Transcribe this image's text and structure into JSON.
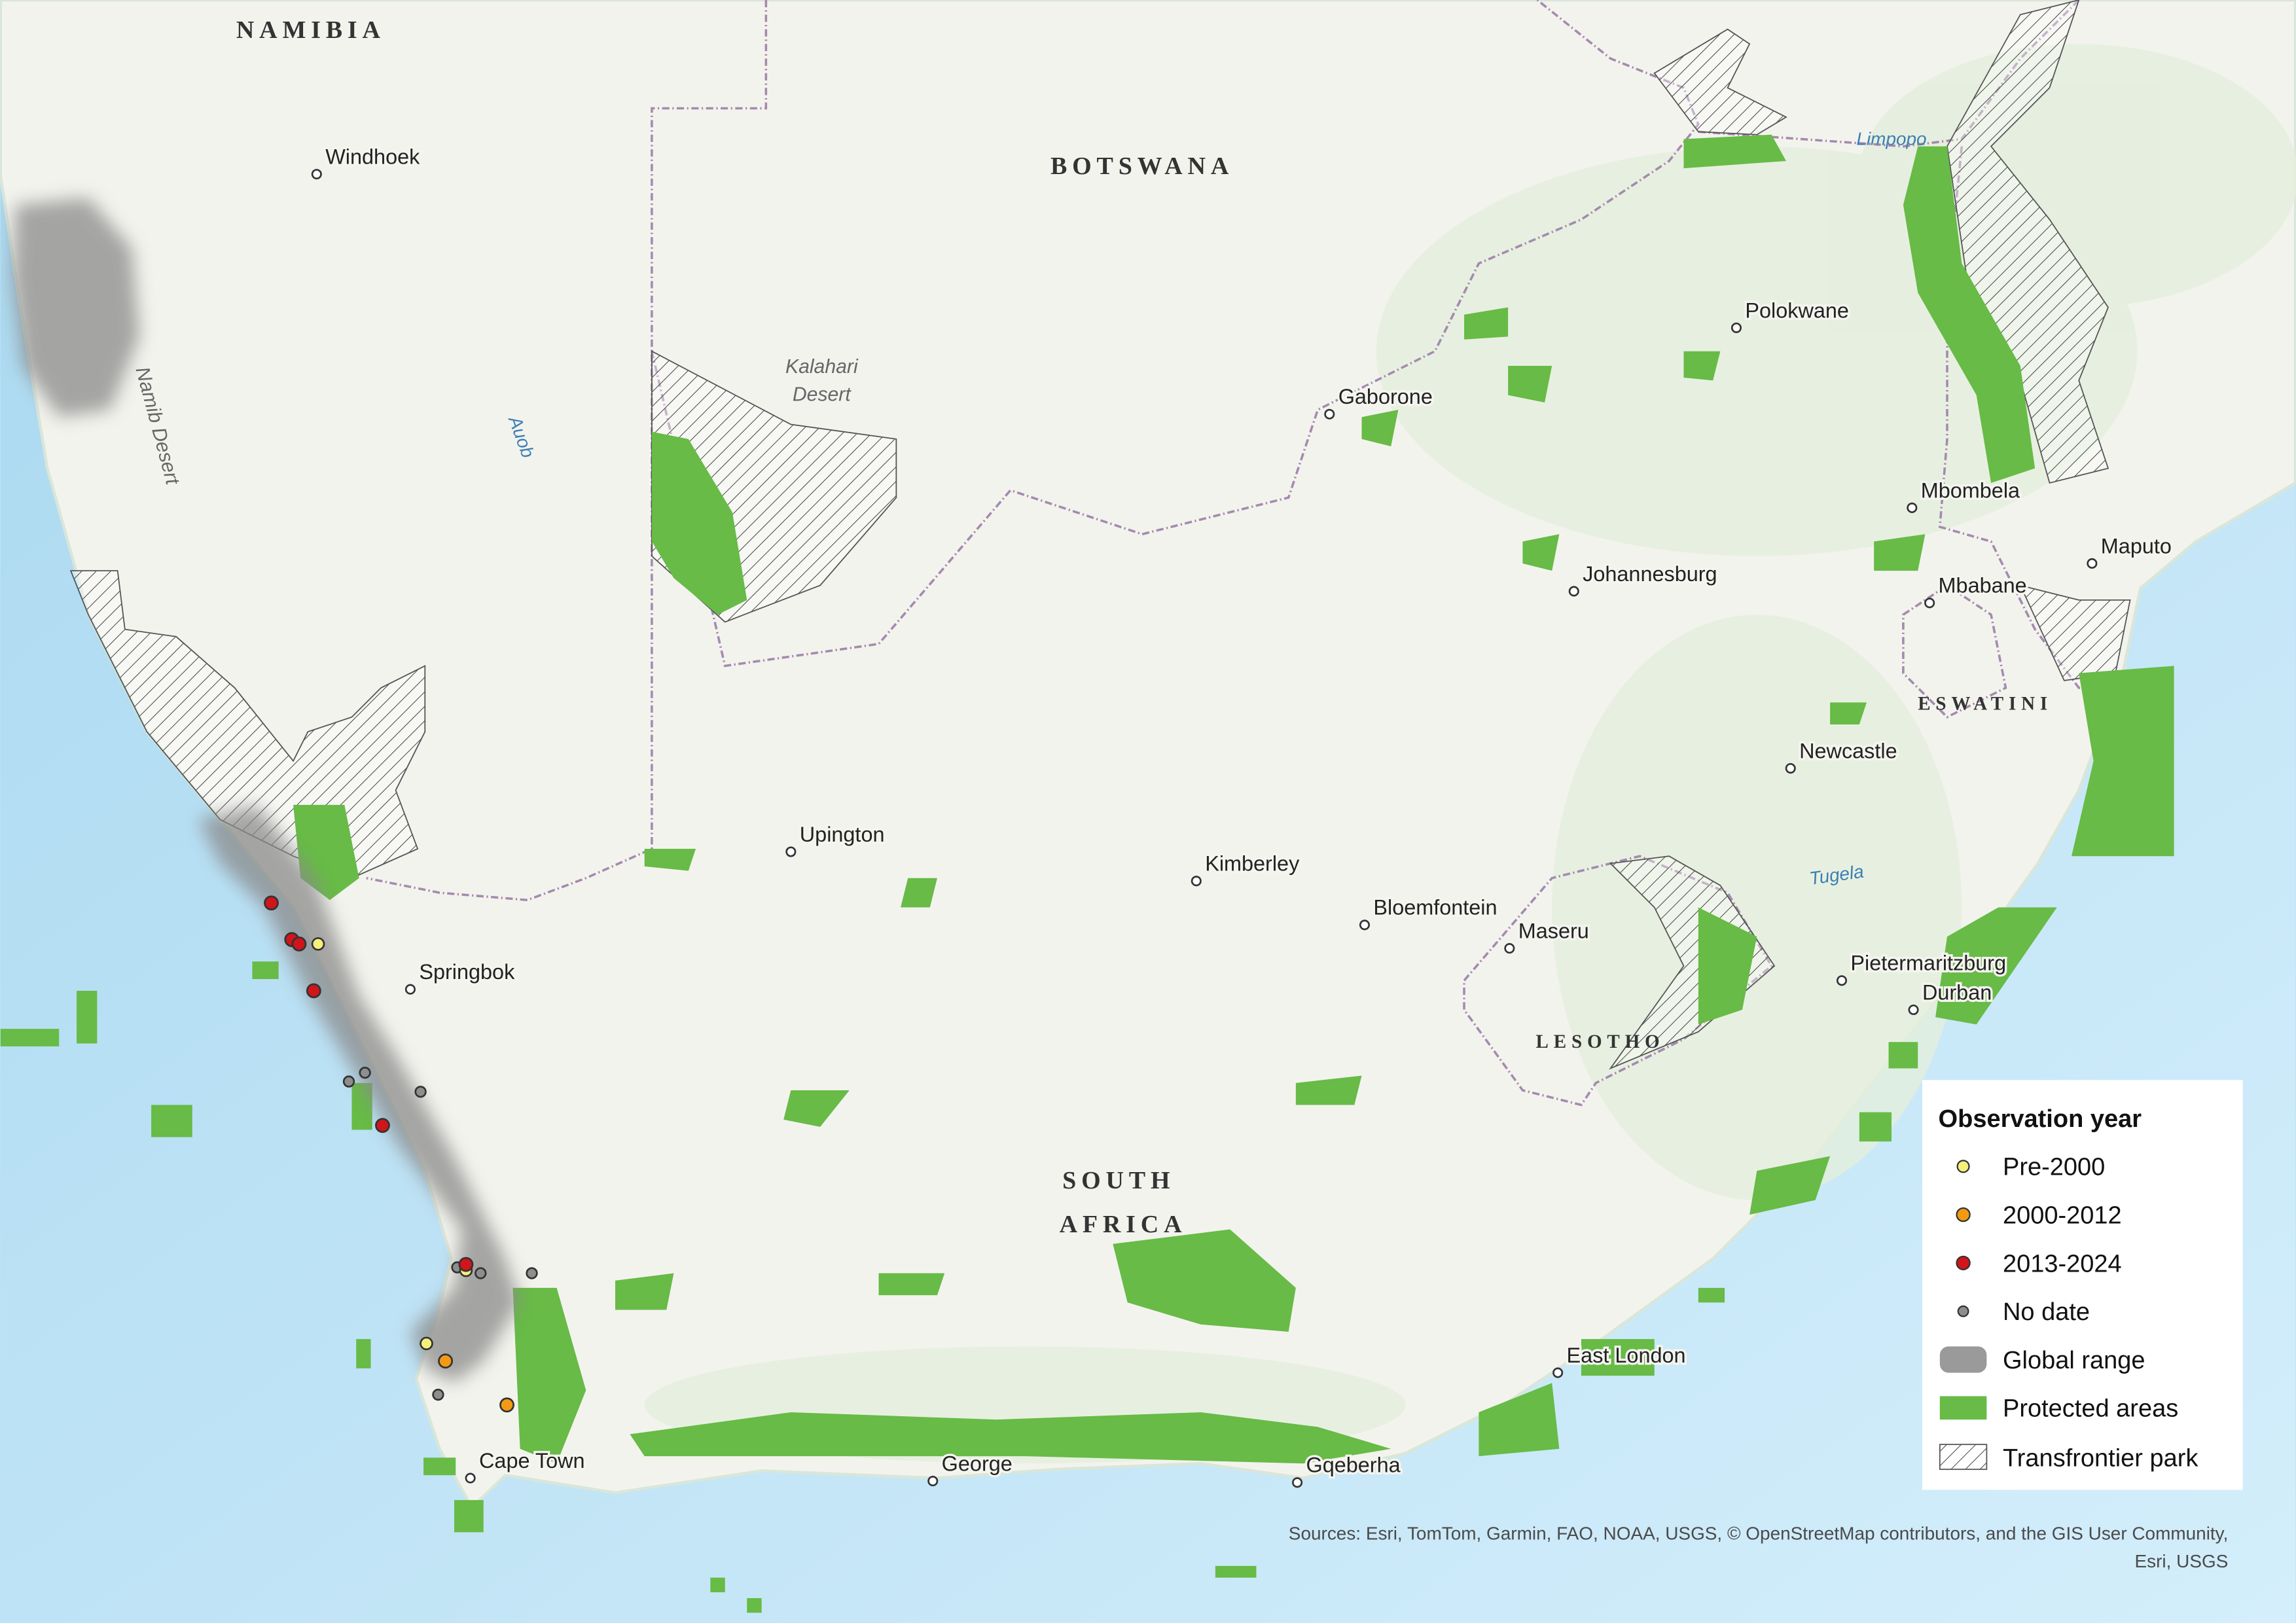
{
  "map": {
    "countries": {
      "namibia": "NAMIBIA",
      "botswana": "BOTSWANA",
      "south_africa": [
        "SOUTH",
        "AFRICA"
      ],
      "lesotho": "LESOTHO",
      "eswatini": "ESWATINI"
    },
    "cities": [
      "Windhoek",
      "Gaborone",
      "Polokwane",
      "Johannesburg",
      "Mbombela",
      "Maputo",
      "Mbabane",
      "Newcastle",
      "Upington",
      "Kimberley",
      "Bloemfontein",
      "Maseru",
      "Pietermaritzburg",
      "Durban",
      "Springbok",
      "East London",
      "Cape Town",
      "George",
      "Gqeberha"
    ],
    "rivers": [
      "Limpopo",
      "Auob",
      "Tugela"
    ],
    "deserts": {
      "kalahari": [
        "Kalahari",
        "Desert"
      ],
      "namib": "Namib Desert"
    }
  },
  "legend": {
    "title": "Observation year",
    "items": [
      "Pre-2000",
      "2000-2012",
      "2013-2024",
      "No date",
      "Global range",
      "Protected areas",
      "Transfrontier park"
    ]
  },
  "attribution": [
    "Sources: Esri, TomTom, Garmin, FAO, NOAA, USGS, © OpenStreetMap contributors, and the GIS User Community,",
    "Esri, USGS"
  ]
}
